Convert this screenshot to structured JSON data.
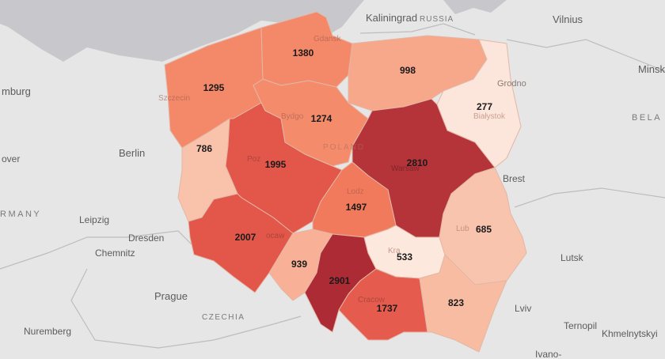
{
  "map": {
    "sea": {
      "color": "#c8c8cc"
    },
    "land": {
      "color": "#e6e6e6"
    },
    "city_labels": {
      "kaliningrad": "Kaliningrad",
      "russia": "RUSSIA",
      "vilnius": "Vilnius",
      "minsk": "Minsk",
      "belarus": "BELA",
      "hamburg": "mburg",
      "hanover": "over",
      "berlin": "Berlin",
      "germany": "RMANY",
      "leipzig": "Leipzig",
      "dresden": "Dresden",
      "chemnitz": "Chemnitz",
      "prague": "Prague",
      "czechia": "CZECHIA",
      "nuremberg": "Nuremberg",
      "lutsk": "Lutsk",
      "lviv": "Lviv",
      "ternopil": "Ternopil",
      "khmelnytskyi": "Khmelnytskyi",
      "ivano": "Ivano-",
      "brest": "Brest",
      "grodno": "Grodno",
      "poland": "POLAND",
      "gdansk": "Gdansk",
      "szczecin": "Szczecin",
      "bydgoszcz": "Bydgo",
      "poznan": "Poz",
      "wroclaw": "ocaw",
      "lodz": "Lodz",
      "warsaw": "Warsaw",
      "bialystok": "Białystok",
      "lublin": "Lub",
      "krakow": "Kra",
      "cracow": "Cracow"
    },
    "regions": [
      {
        "id": "zachodniopomorskie",
        "value": "1295",
        "color": "#f4896a"
      },
      {
        "id": "pomorskie",
        "value": "1380",
        "color": "#f4896a"
      },
      {
        "id": "warminsko-mazurskie",
        "value": "998",
        "color": "#f7a78a"
      },
      {
        "id": "podlaskie",
        "value": "277",
        "color": "#fce5da"
      },
      {
        "id": "kujawsko-pomorskie",
        "value": "1274",
        "color": "#f48c6c"
      },
      {
        "id": "lubuskie",
        "value": "786",
        "color": "#f9c2ab"
      },
      {
        "id": "wielkopolskie",
        "value": "1995",
        "color": "#e2574a"
      },
      {
        "id": "mazowieckie",
        "value": "2810",
        "color": "#b5343a"
      },
      {
        "id": "lodzkie",
        "value": "1497",
        "color": "#f17a5c"
      },
      {
        "id": "dolnoslaskie",
        "value": "2007",
        "color": "#e2574a"
      },
      {
        "id": "opolskie",
        "value": "939",
        "color": "#f8b197"
      },
      {
        "id": "slaskie",
        "value": "2901",
        "color": "#ad2b35"
      },
      {
        "id": "swietokrzyskie",
        "value": "533",
        "color": "#fde8de"
      },
      {
        "id": "lubelskie",
        "value": "685",
        "color": "#f9c4ae"
      },
      {
        "id": "malopolskie",
        "value": "1737",
        "color": "#e55c4e"
      },
      {
        "id": "podkarpackie",
        "value": "823",
        "color": "#f8bca3"
      }
    ]
  }
}
